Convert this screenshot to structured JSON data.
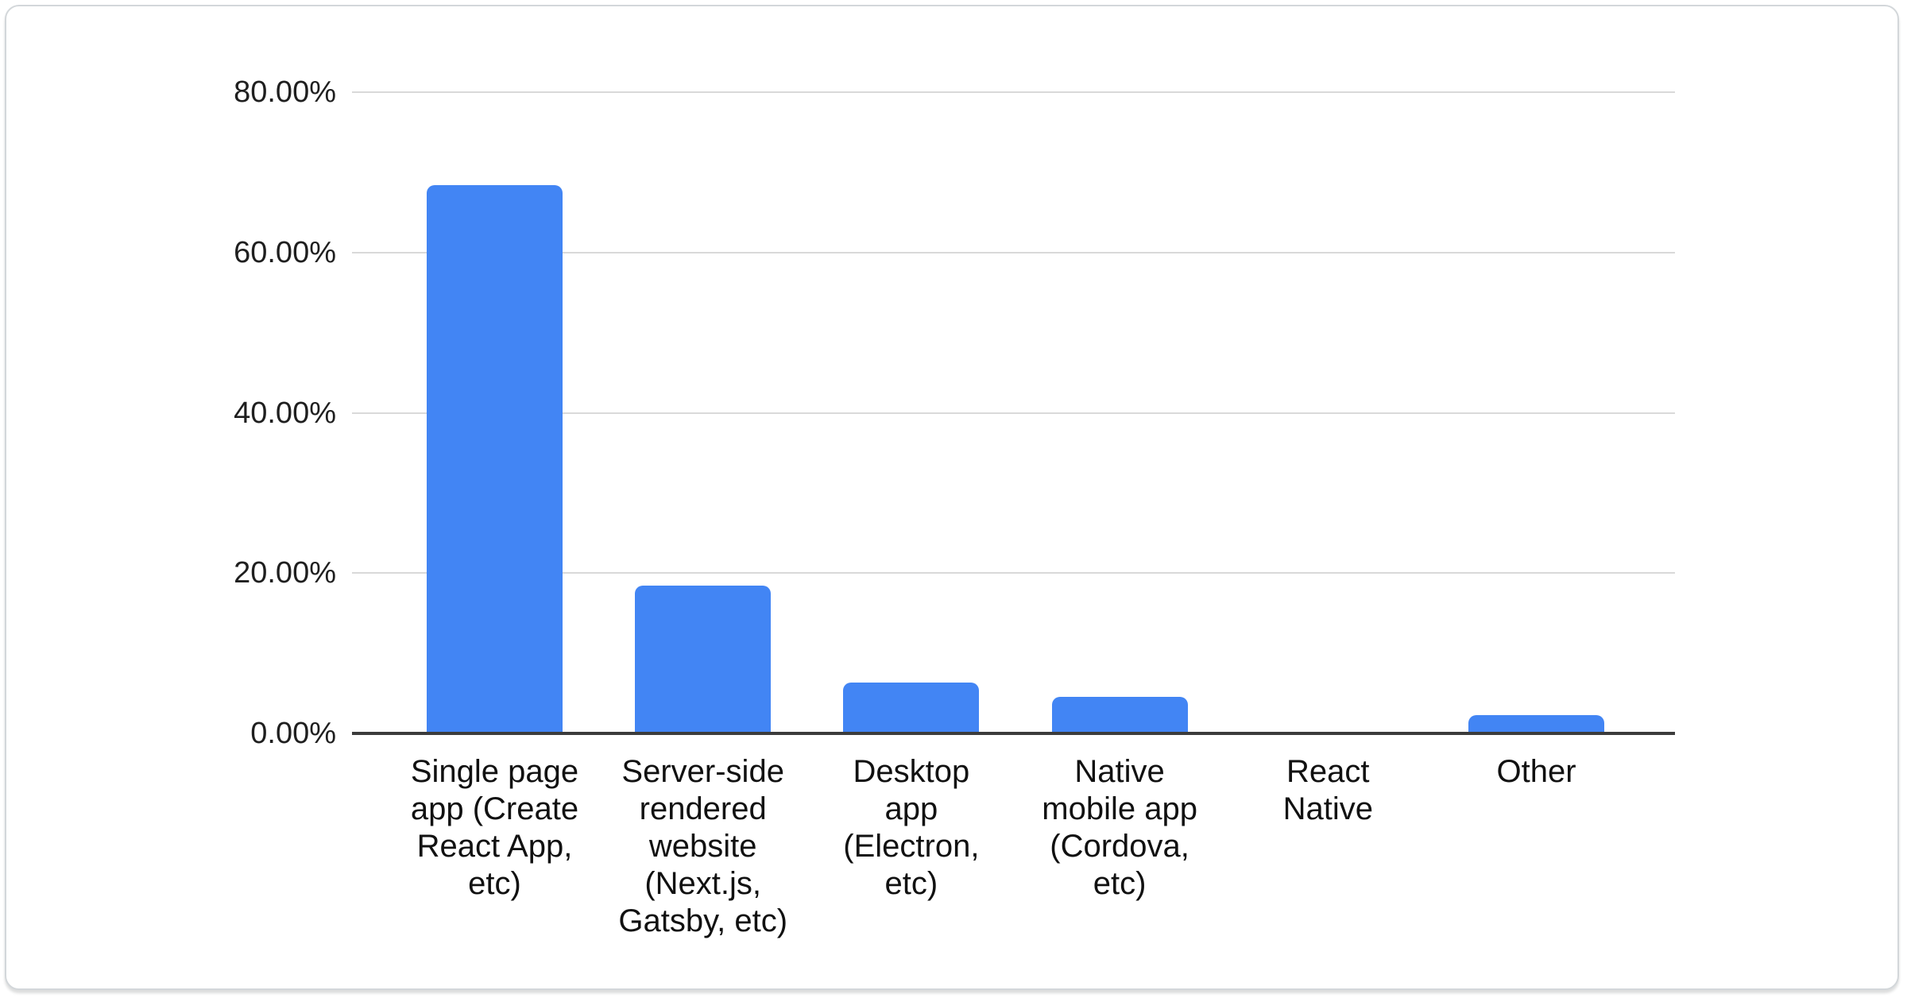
{
  "chart_data": {
    "type": "bar",
    "title": "",
    "xlabel": "",
    "ylabel": "",
    "legend": "none",
    "grid": true,
    "ylim": [
      0,
      80
    ],
    "y_ticks": [
      {
        "label": "80.00%",
        "value": 80
      },
      {
        "label": "60.00%",
        "value": 60
      },
      {
        "label": "40.00%",
        "value": 40
      },
      {
        "label": "20.00%",
        "value": 20
      },
      {
        "label": "0.00%",
        "value": 0
      }
    ],
    "categories": [
      "Single page app (Create React App, etc)",
      "Server-side rendered website (Next.js, Gatsby, etc)",
      "Desktop app (Electron, etc)",
      "Native mobile app (Cordova, etc)",
      "React Native",
      "Other"
    ],
    "category_lines": [
      [
        "Single page",
        "app (Create",
        "React App,",
        "etc)"
      ],
      [
        "Server-side",
        "rendered",
        "website",
        "(Next.js,",
        "Gatsby, etc)"
      ],
      [
        "Desktop",
        "app",
        "(Electron,",
        "etc)"
      ],
      [
        "Native",
        "mobile app",
        "(Cordova,",
        "etc)"
      ],
      [
        "React",
        "Native"
      ],
      [
        "Other"
      ]
    ],
    "values": [
      68.4,
      18.4,
      6.3,
      4.6,
      0.0,
      2.3
    ],
    "bar_color": "#4285f4",
    "grid_color": "#d9d9d9",
    "axis_color": "#3c3c3c",
    "label_color": "#1f1f1f"
  }
}
